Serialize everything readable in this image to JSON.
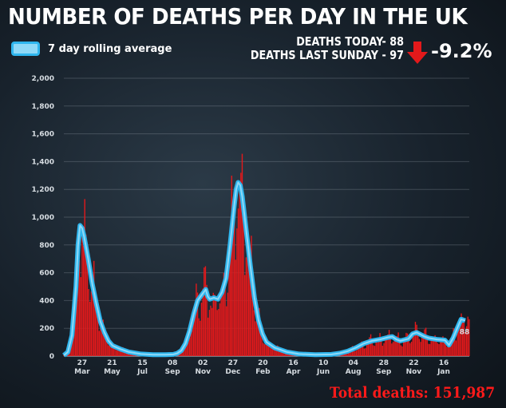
{
  "header": {
    "title": "NUMBER OF DEATHS PER DAY IN THE UK",
    "deaths_today": "DEATHS TODAY- 88",
    "deaths_last_sunday": "DEATHS LAST SUNDAY - 97",
    "change_pct": "-9.2%",
    "total": "Total deaths: 151,987"
  },
  "legend": {
    "label": "7 day rolling average"
  },
  "colors": {
    "bars": "#e3191b",
    "line": "#2fb6ee",
    "line_fill": "#8fd9f7",
    "arrow": "#e3191b"
  },
  "chart_data": {
    "type": "bar",
    "title": "NUMBER OF DEATHS PER DAY IN THE UK",
    "ylim": [
      0,
      2000
    ],
    "yticks": [
      "0",
      "200",
      "400",
      "600",
      "800",
      "1,000",
      "1,200",
      "1,400",
      "1,600",
      "1,800",
      "2,000"
    ],
    "ytick_values": [
      0,
      200,
      400,
      600,
      800,
      1000,
      1200,
      1400,
      1600,
      1800,
      2000
    ],
    "x_ticks": [
      {
        "day": "27",
        "month": "Mar",
        "t": 0.045
      },
      {
        "day": "21",
        "month": "May",
        "t": 0.119
      },
      {
        "day": "15",
        "month": "Jul",
        "t": 0.194
      },
      {
        "day": "08",
        "month": "Sep",
        "t": 0.268
      },
      {
        "day": "02",
        "month": "Nov",
        "t": 0.343
      },
      {
        "day": "27",
        "month": "Dec",
        "t": 0.417
      },
      {
        "day": "20",
        "month": "Feb",
        "t": 0.491
      },
      {
        "day": "16",
        "month": "Apr",
        "t": 0.566
      },
      {
        "day": "10",
        "month": "Jun",
        "t": 0.64
      },
      {
        "day": "04",
        "month": "Aug",
        "t": 0.714
      },
      {
        "day": "28",
        "month": "Sep",
        "t": 0.789
      },
      {
        "day": "22",
        "month": "Nov",
        "t": 0.863
      },
      {
        "day": "16",
        "month": "Jan",
        "t": 0.937
      }
    ],
    "daily_deaths_annotation": "88",
    "series": [
      {
        "name": "7 day rolling average",
        "points": [
          [
            0.0,
            5
          ],
          [
            0.01,
            30
          ],
          [
            0.02,
            150
          ],
          [
            0.03,
            500
          ],
          [
            0.035,
            800
          ],
          [
            0.04,
            940
          ],
          [
            0.045,
            920
          ],
          [
            0.05,
            860
          ],
          [
            0.06,
            700
          ],
          [
            0.07,
            520
          ],
          [
            0.08,
            380
          ],
          [
            0.09,
            250
          ],
          [
            0.1,
            170
          ],
          [
            0.11,
            110
          ],
          [
            0.12,
            75
          ],
          [
            0.14,
            50
          ],
          [
            0.16,
            30
          ],
          [
            0.19,
            15
          ],
          [
            0.22,
            10
          ],
          [
            0.25,
            10
          ],
          [
            0.27,
            12
          ],
          [
            0.28,
            20
          ],
          [
            0.29,
            40
          ],
          [
            0.3,
            90
          ],
          [
            0.31,
            180
          ],
          [
            0.32,
            300
          ],
          [
            0.33,
            400
          ],
          [
            0.34,
            440
          ],
          [
            0.35,
            480
          ],
          [
            0.355,
            430
          ],
          [
            0.36,
            410
          ],
          [
            0.37,
            420
          ],
          [
            0.38,
            410
          ],
          [
            0.39,
            460
          ],
          [
            0.4,
            560
          ],
          [
            0.41,
            800
          ],
          [
            0.42,
            1080
          ],
          [
            0.425,
            1200
          ],
          [
            0.43,
            1250
          ],
          [
            0.435,
            1230
          ],
          [
            0.44,
            1150
          ],
          [
            0.45,
            900
          ],
          [
            0.46,
            650
          ],
          [
            0.47,
            420
          ],
          [
            0.48,
            260
          ],
          [
            0.49,
            160
          ],
          [
            0.5,
            100
          ],
          [
            0.52,
            60
          ],
          [
            0.55,
            30
          ],
          [
            0.58,
            15
          ],
          [
            0.62,
            10
          ],
          [
            0.66,
            12
          ],
          [
            0.68,
            20
          ],
          [
            0.7,
            35
          ],
          [
            0.72,
            60
          ],
          [
            0.74,
            90
          ],
          [
            0.76,
            110
          ],
          [
            0.78,
            120
          ],
          [
            0.8,
            135
          ],
          [
            0.81,
            140
          ],
          [
            0.82,
            120
          ],
          [
            0.83,
            110
          ],
          [
            0.85,
            125
          ],
          [
            0.86,
            160
          ],
          [
            0.87,
            170
          ],
          [
            0.88,
            155
          ],
          [
            0.89,
            140
          ],
          [
            0.9,
            130
          ],
          [
            0.92,
            120
          ],
          [
            0.94,
            115
          ],
          [
            0.95,
            80
          ],
          [
            0.96,
            130
          ],
          [
            0.97,
            200
          ],
          [
            0.98,
            265
          ],
          [
            0.99,
            255
          ]
        ]
      }
    ]
  }
}
